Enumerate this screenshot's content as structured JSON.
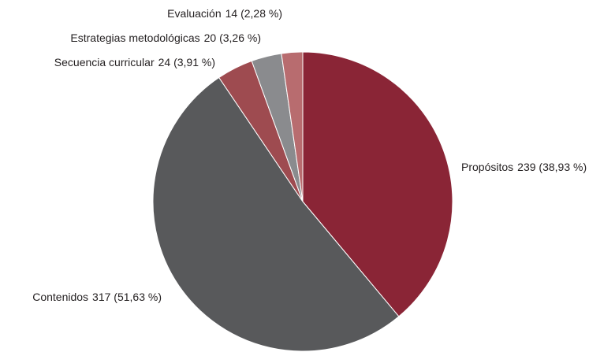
{
  "chart_data": {
    "type": "pie",
    "categories": [
      "Propósitos",
      "Contenidos",
      "Secuencia curricular",
      "Estrategias metodológicas",
      "Evaluación"
    ],
    "values": [
      239,
      317,
      24,
      20,
      14
    ],
    "value_labels": [
      "239 (38,93 %)",
      "317 (51,63 %)",
      "24 (3,91 %)",
      "20 (3,26 %)",
      "14 (2,28 %)"
    ],
    "colors": [
      "#8a2536",
      "#58595b",
      "#9e4b50",
      "#8a8b8e",
      "#b86c6f"
    ]
  }
}
